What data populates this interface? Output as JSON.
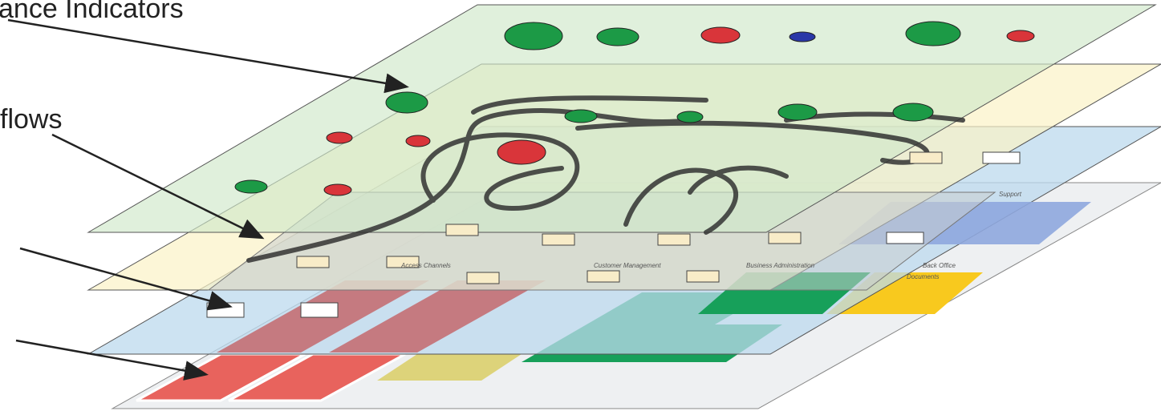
{
  "header": {
    "title": "ance Indicators",
    "flows": "flows"
  },
  "layer_labels": [
    "Access Channels",
    "Customer Management",
    "Business Administration",
    "Back Office",
    "Support",
    "Documents"
  ]
}
